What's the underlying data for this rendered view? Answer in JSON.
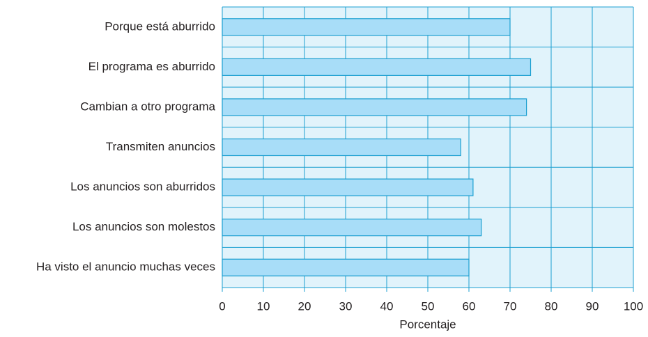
{
  "chart_data": {
    "type": "barh",
    "xlabel": "Porcentaje",
    "categories": [
      "Porque está aburrido",
      "El programa es aburrido",
      "Cambian a otro programa",
      "Transmiten anuncios",
      "Los anuncios son aburridos",
      "Los anuncios son molestos",
      "Ha visto el anuncio muchas veces"
    ],
    "values": [
      70,
      75,
      74,
      58,
      61,
      63,
      60
    ],
    "color": "#a8ddf8",
    "xlim": [
      0,
      100
    ],
    "xticks": [
      0,
      10,
      20,
      30,
      40,
      50,
      60,
      70,
      80,
      90,
      100
    ],
    "grid": true
  }
}
